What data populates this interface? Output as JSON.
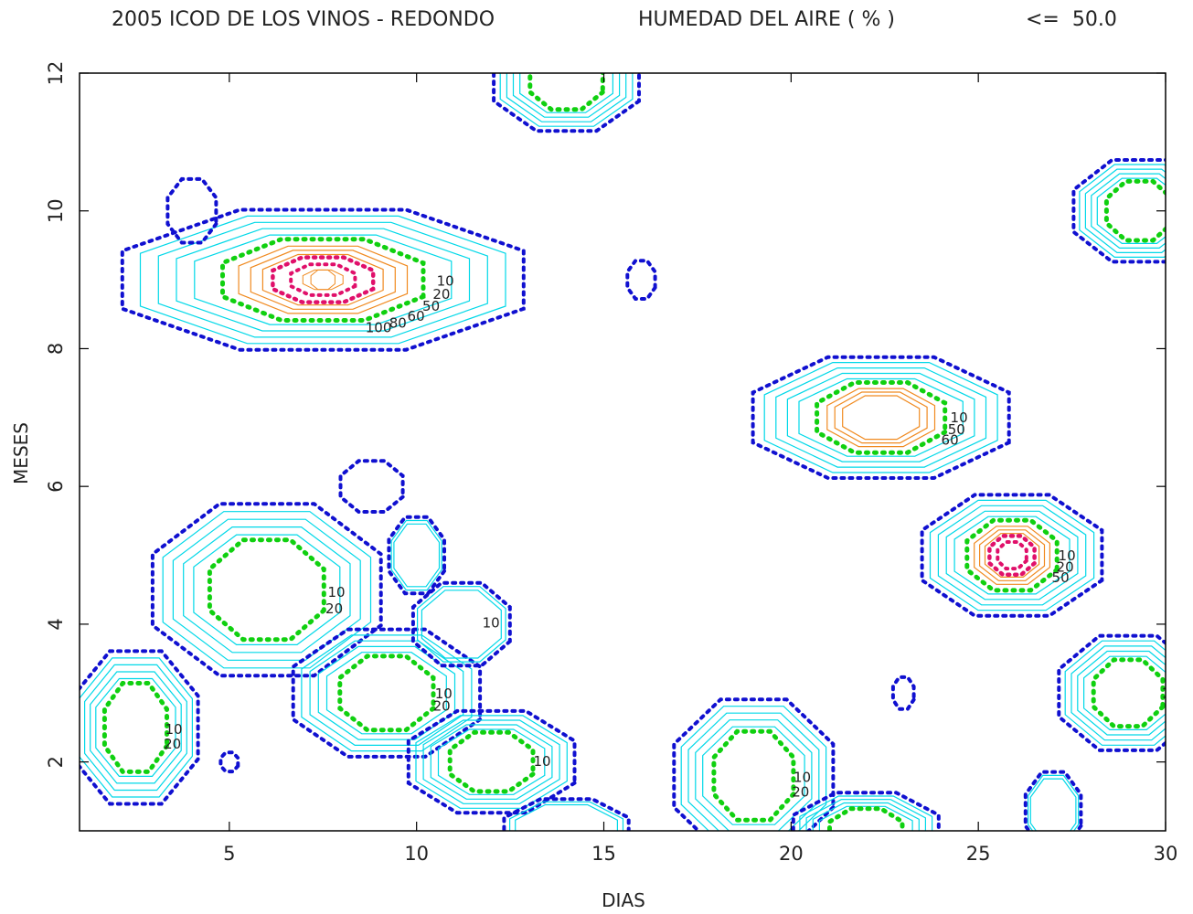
{
  "chart_data": {
    "type": "contour",
    "title_parts": [
      "2005 ICOD DE LOS VINOS - REDONDO",
      "HUMEDAD DEL AIRE ( % )",
      "<=  50.0"
    ],
    "xlabel": "DIAS",
    "ylabel": "MESES",
    "xlim": [
      1,
      30
    ],
    "ylim": [
      1,
      12
    ],
    "xticks": [
      5,
      10,
      15,
      20,
      25,
      30
    ],
    "yticks": [
      2,
      4,
      6,
      8,
      10,
      12
    ],
    "grid": false,
    "contour_levels_labeled": [
      "10",
      "20",
      "50",
      "60",
      "80",
      "100"
    ],
    "level_colors": {
      "outer_dotted": "#1010d0",
      "low": "#00d8e8",
      "mid_dotted": "#10d010",
      "orange": "#f08a20",
      "magenta_dotted": "#e0106a",
      "label_gray": "#555555"
    },
    "regions": [
      {
        "cx": 7.5,
        "cy": 9.0,
        "rx": 5.8,
        "ry": 1.1,
        "peak": "100",
        "labels": [
          "10",
          "20",
          "50",
          "60",
          "80",
          "100"
        ]
      },
      {
        "cx": 22.4,
        "cy": 7.0,
        "rx": 3.7,
        "ry": 0.95,
        "peak": "60",
        "labels": [
          "10",
          "50",
          "60"
        ]
      },
      {
        "cx": 25.9,
        "cy": 5.0,
        "rx": 2.6,
        "ry": 0.95,
        "peak": "80",
        "labels": [
          "10",
          "20",
          "50"
        ]
      },
      {
        "cx": 6.0,
        "cy": 4.5,
        "rx": 3.3,
        "ry": 1.35,
        "peak": "20",
        "labels": [
          "10",
          "20"
        ]
      },
      {
        "cx": 9.2,
        "cy": 3.0,
        "rx": 2.7,
        "ry": 1.0,
        "peak": "20",
        "labels": [
          "10",
          "20"
        ]
      },
      {
        "cx": 29.0,
        "cy": 3.0,
        "rx": 2.0,
        "ry": 0.9,
        "peak": "20",
        "labels": [
          "10"
        ]
      },
      {
        "cx": 2.5,
        "cy": 2.5,
        "rx": 1.8,
        "ry": 1.2,
        "peak": "20",
        "labels": [
          "10",
          "20"
        ]
      },
      {
        "cx": 29.3,
        "cy": 10.0,
        "rx": 1.9,
        "ry": 0.8,
        "peak": "20",
        "labels": []
      },
      {
        "cx": 14.0,
        "cy": 11.9,
        "rx": 2.1,
        "ry": 0.8,
        "peak": "20",
        "labels": []
      },
      {
        "cx": 12.0,
        "cy": 2.0,
        "rx": 2.4,
        "ry": 0.8,
        "peak": "20",
        "labels": [
          "10"
        ]
      },
      {
        "cx": 19.0,
        "cy": 1.8,
        "rx": 2.3,
        "ry": 1.2,
        "peak": "20",
        "labels": [
          "10",
          "20"
        ]
      },
      {
        "cx": 22.0,
        "cy": 1.0,
        "rx": 2.1,
        "ry": 0.6,
        "peak": "20",
        "labels": []
      },
      {
        "cx": 14.0,
        "cy": 1.0,
        "rx": 1.8,
        "ry": 0.5,
        "peak": "10",
        "labels": []
      },
      {
        "cx": 11.2,
        "cy": 4.0,
        "rx": 1.4,
        "ry": 0.65,
        "peak": "10",
        "labels": [
          "10"
        ]
      },
      {
        "cx": 10.0,
        "cy": 5.0,
        "rx": 0.8,
        "ry": 0.6,
        "peak": "10",
        "labels": []
      },
      {
        "cx": 8.8,
        "cy": 6.0,
        "rx": 0.9,
        "ry": 0.4,
        "peak": "5",
        "labels": []
      },
      {
        "cx": 4.0,
        "cy": 10.0,
        "rx": 0.7,
        "ry": 0.5,
        "peak": "5",
        "labels": []
      },
      {
        "cx": 16.0,
        "cy": 9.0,
        "rx": 0.4,
        "ry": 0.3,
        "peak": "5",
        "labels": []
      },
      {
        "cx": 23.0,
        "cy": 3.0,
        "rx": 0.3,
        "ry": 0.25,
        "peak": "5",
        "labels": []
      },
      {
        "cx": 5.0,
        "cy": 2.0,
        "rx": 0.25,
        "ry": 0.15,
        "peak": "5",
        "labels": []
      },
      {
        "cx": 27.0,
        "cy": 1.3,
        "rx": 0.8,
        "ry": 0.6,
        "peak": "10",
        "labels": []
      }
    ]
  }
}
